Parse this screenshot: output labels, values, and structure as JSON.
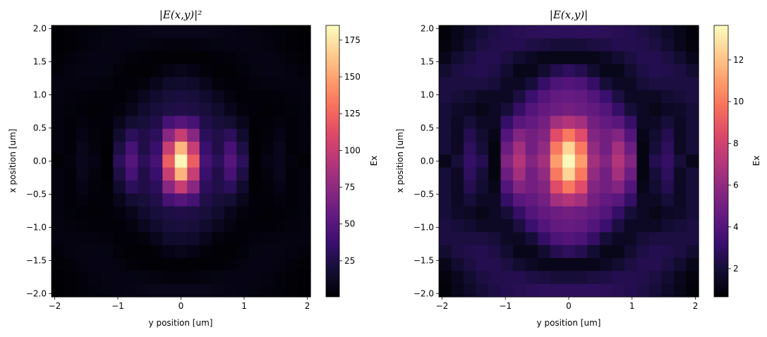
{
  "colormap": "magma",
  "chart_data": [
    {
      "type": "heatmap",
      "title": "|E(x,y)|²",
      "xlabel": "y position [um]",
      "ylabel": "x position [um]",
      "colorbar_label": "Ex",
      "xlim": [
        -2.05,
        2.05
      ],
      "ylim": [
        -2.05,
        2.05
      ],
      "xticks": [
        "−2",
        "−1",
        "0",
        "1",
        "2"
      ],
      "xtick_values": [
        -2,
        -1,
        0,
        1,
        2
      ],
      "yticks": [
        "−2.0",
        "−1.5",
        "−1.0",
        "−0.5",
        "0.0",
        "0.5",
        "1.0",
        "1.5",
        "2.0"
      ],
      "ytick_values": [
        -2,
        -1.5,
        -1,
        -0.5,
        0,
        0.5,
        1,
        1.5,
        2
      ],
      "colorbar_range": [
        0.5,
        185
      ],
      "colorbar_ticks": [
        "25",
        "50",
        "75",
        "100",
        "125",
        "150",
        "175"
      ],
      "colorbar_tick_values": [
        25,
        50,
        75,
        100,
        125,
        150,
        175
      ],
      "grid": false,
      "x": [
        -2.0,
        -1.8,
        -1.6,
        -1.4,
        -1.2,
        -1.0,
        -0.8,
        -0.6,
        -0.4,
        -0.2,
        0,
        0.2,
        0.4,
        0.6,
        0.8,
        1.0,
        1.2,
        1.4,
        1.6,
        1.8,
        2.0
      ],
      "y_top_to_bottom": [
        2.0,
        1.8,
        1.6,
        1.4,
        1.2,
        1.0,
        0.8,
        0.6,
        0.4,
        0.2,
        0,
        -0.2,
        -0.4,
        -0.6,
        -0.8,
        -1.0,
        -1.2,
        -1.4,
        -1.6,
        -1.8,
        -2.0
      ],
      "z": [
        [
          0.6,
          1.4,
          2.6,
          4,
          5.3,
          6.3,
          6.8,
          7.3,
          7.8,
          7.8,
          7.8,
          7.8,
          7.8,
          7.3,
          6.8,
          6.3,
          5.3,
          4,
          2.6,
          1.4,
          0.6
        ],
        [
          0.8,
          1.7,
          3.2,
          4.8,
          5.8,
          6.3,
          6.3,
          5.3,
          4.8,
          4,
          4,
          4,
          4.8,
          5.3,
          6.3,
          6.3,
          5.8,
          4.8,
          3.2,
          1.7,
          0.8
        ],
        [
          1.4,
          3.2,
          4.8,
          6.3,
          6.3,
          4.8,
          3.2,
          2.3,
          1.4,
          1.4,
          1.4,
          1.4,
          1.4,
          2.3,
          3.2,
          4.8,
          6.3,
          6.3,
          4.8,
          3.2,
          1.4
        ],
        [
          3.2,
          4.8,
          5.8,
          6.3,
          5.3,
          3.2,
          1.4,
          1.4,
          3.2,
          6.3,
          7.8,
          6.3,
          3.2,
          1.4,
          1.4,
          3.2,
          5.3,
          6.3,
          5.8,
          4.8,
          3.2
        ],
        [
          4.8,
          4.8,
          4.8,
          4.8,
          4,
          2.3,
          2.3,
          4,
          9,
          14.4,
          16,
          14.4,
          9,
          4,
          2.3,
          2.3,
          4,
          4.8,
          4.8,
          4.8,
          4.8
        ],
        [
          4.8,
          4,
          3.2,
          2.3,
          2.3,
          2.3,
          4.8,
          10.2,
          16,
          20.3,
          21.2,
          20.3,
          16,
          10.2,
          4.8,
          2.3,
          2.3,
          2.3,
          3.2,
          4,
          4.8
        ],
        [
          4,
          2.6,
          2.3,
          1.4,
          2.3,
          4,
          9,
          16,
          20.3,
          23,
          25,
          23,
          20.3,
          16,
          9,
          4,
          2.3,
          1.4,
          2.3,
          2.6,
          4
        ],
        [
          4,
          2.3,
          4,
          2.3,
          2.3,
          9,
          17.6,
          20.3,
          25,
          42.3,
          49,
          42.3,
          25,
          20.3,
          17.6,
          9,
          2.3,
          2.3,
          4,
          2.3,
          4
        ],
        [
          4,
          2.3,
          6.3,
          3.2,
          1.4,
          16,
          30.3,
          25,
          30.3,
          72.3,
          100,
          72.3,
          30.3,
          25,
          30.3,
          16,
          1.4,
          3.2,
          6.3,
          2.3,
          4
        ],
        [
          4,
          2.3,
          7.8,
          4,
          1,
          23,
          42.3,
          25,
          36,
          100,
          156.3,
          100,
          36,
          25,
          42.3,
          23,
          1,
          4,
          7.8,
          2.3,
          4
        ],
        [
          1.4,
          4,
          9,
          6.3,
          1,
          30.3,
          49,
          30.3,
          42.3,
          121,
          182.3,
          121,
          42.3,
          30.3,
          49,
          30.3,
          1,
          6.3,
          9,
          4,
          1.4
        ],
        [
          4,
          2.3,
          7.8,
          4,
          1,
          23,
          42.3,
          25,
          36,
          100,
          156.3,
          100,
          36,
          25,
          42.3,
          23,
          1,
          4,
          7.8,
          2.3,
          4
        ],
        [
          4,
          2.3,
          6.3,
          3.2,
          1.4,
          16,
          30.3,
          25,
          30.3,
          72.3,
          100,
          72.3,
          30.3,
          25,
          30.3,
          16,
          1.4,
          3.2,
          6.3,
          2.3,
          4
        ],
        [
          4,
          2.3,
          4,
          2.3,
          2.3,
          9,
          17.6,
          20.3,
          25,
          42.3,
          49,
          42.3,
          25,
          20.3,
          17.6,
          9,
          2.3,
          2.3,
          4,
          2.3,
          4
        ],
        [
          4,
          2.6,
          2.3,
          1.4,
          2.3,
          4,
          9,
          16,
          20.3,
          23,
          25,
          23,
          20.3,
          16,
          9,
          4,
          2.3,
          1.4,
          2.3,
          2.6,
          4
        ],
        [
          4.8,
          4,
          3.2,
          2.3,
          2.3,
          2.3,
          4.8,
          10.2,
          16,
          20.3,
          21.2,
          20.3,
          16,
          10.2,
          4.8,
          2.3,
          2.3,
          2.3,
          3.2,
          4,
          4.8
        ],
        [
          4.8,
          4.8,
          4.8,
          4.8,
          4,
          2.3,
          2.3,
          4,
          9,
          14.4,
          16,
          14.4,
          9,
          4,
          2.3,
          2.3,
          4,
          4.8,
          4.8,
          4.8,
          4.8
        ],
        [
          3.2,
          4.8,
          5.8,
          6.3,
          5.3,
          3.2,
          1.4,
          1.4,
          3.2,
          6.3,
          7.8,
          6.3,
          3.2,
          1.4,
          1.4,
          3.2,
          5.3,
          6.3,
          5.8,
          4.8,
          3.2
        ],
        [
          1.4,
          3.2,
          4.8,
          6.3,
          6.3,
          4.8,
          3.2,
          2.3,
          1.4,
          1.4,
          1.4,
          1.4,
          1.4,
          2.3,
          3.2,
          4.8,
          6.3,
          6.3,
          4.8,
          3.2,
          1.4
        ],
        [
          0.8,
          1.7,
          3.2,
          4.8,
          5.8,
          6.3,
          6.3,
          5.3,
          4.8,
          4,
          4,
          4,
          4.8,
          5.3,
          6.3,
          6.3,
          5.8,
          4.8,
          3.2,
          1.7,
          0.8
        ],
        [
          0.6,
          1.4,
          2.6,
          4,
          5.3,
          6.3,
          6.8,
          7.3,
          7.8,
          7.8,
          7.8,
          7.8,
          7.8,
          7.3,
          6.8,
          6.3,
          5.3,
          4,
          2.6,
          1.4,
          0.6
        ]
      ]
    },
    {
      "type": "heatmap",
      "title": "|E(x,y)|",
      "xlabel": "y position [um]",
      "ylabel": "x position [um]",
      "colorbar_label": "Ex",
      "xlim": [
        -2.05,
        2.05
      ],
      "ylim": [
        -2.05,
        2.05
      ],
      "xticks": [
        "−2",
        "−1",
        "0",
        "1",
        "2"
      ],
      "xtick_values": [
        -2,
        -1,
        0,
        1,
        2
      ],
      "yticks": [
        "−2.0",
        "−1.5",
        "−1.0",
        "−0.5",
        "0.0",
        "0.5",
        "1.0",
        "1.5",
        "2.0"
      ],
      "ytick_values": [
        -2,
        -1.5,
        -1,
        -0.5,
        0,
        0.5,
        1,
        1.5,
        2
      ],
      "colorbar_range": [
        0.65,
        13.65
      ],
      "colorbar_ticks": [
        "2",
        "4",
        "6",
        "8",
        "10",
        "12"
      ],
      "colorbar_tick_values": [
        2,
        4,
        6,
        8,
        10,
        12
      ],
      "grid": false,
      "x": [
        -2.0,
        -1.8,
        -1.6,
        -1.4,
        -1.2,
        -1.0,
        -0.8,
        -0.6,
        -0.4,
        -0.2,
        0,
        0.2,
        0.4,
        0.6,
        0.8,
        1.0,
        1.2,
        1.4,
        1.6,
        1.8,
        2.0
      ],
      "y_top_to_bottom": [
        2.0,
        1.8,
        1.6,
        1.4,
        1.2,
        1.0,
        0.8,
        0.6,
        0.4,
        0.2,
        0,
        -0.2,
        -0.4,
        -0.6,
        -0.8,
        -1.0,
        -1.2,
        -1.4,
        -1.6,
        -1.8,
        -2.0
      ],
      "z": [
        [
          0.8,
          1.2,
          1.6,
          2,
          2.3,
          2.5,
          2.6,
          2.7,
          2.8,
          2.8,
          2.8,
          2.8,
          2.8,
          2.7,
          2.6,
          2.5,
          2.3,
          2,
          1.6,
          1.2,
          0.8
        ],
        [
          0.9,
          1.3,
          1.8,
          2.2,
          2.4,
          2.5,
          2.5,
          2.3,
          2.2,
          2,
          2,
          2,
          2.2,
          2.3,
          2.5,
          2.5,
          2.4,
          2.2,
          1.8,
          1.3,
          0.9
        ],
        [
          1.2,
          1.8,
          2.2,
          2.5,
          2.5,
          2.2,
          1.8,
          1.5,
          1.2,
          1.2,
          1.2,
          1.2,
          1.2,
          1.5,
          1.8,
          2.2,
          2.5,
          2.5,
          2.2,
          1.8,
          1.2
        ],
        [
          1.8,
          2.2,
          2.4,
          2.5,
          2.3,
          1.8,
          1.2,
          1.2,
          1.8,
          2.5,
          2.8,
          2.5,
          1.8,
          1.2,
          1.2,
          1.8,
          2.3,
          2.5,
          2.4,
          2.2,
          1.8
        ],
        [
          2.2,
          2.2,
          2.2,
          2.2,
          2,
          1.5,
          1.5,
          2,
          3,
          3.8,
          4,
          3.8,
          3,
          2,
          1.5,
          1.5,
          2,
          2.2,
          2.2,
          2.2,
          2.2
        ],
        [
          2.2,
          2,
          1.8,
          1.5,
          1.5,
          1.5,
          2.2,
          3.2,
          4,
          4.5,
          4.6,
          4.5,
          4,
          3.2,
          2.2,
          1.5,
          1.5,
          1.5,
          1.8,
          2,
          2.2
        ],
        [
          2,
          1.6,
          1.5,
          1.2,
          1.5,
          2,
          3,
          4,
          4.5,
          4.8,
          5,
          4.8,
          4.5,
          4,
          3,
          2,
          1.5,
          1.2,
          1.5,
          1.6,
          2
        ],
        [
          2,
          1.5,
          2,
          1.5,
          1.5,
          3,
          4.2,
          4.5,
          5,
          6.5,
          7,
          6.5,
          5,
          4.5,
          4.2,
          3,
          1.5,
          1.5,
          2,
          1.5,
          2
        ],
        [
          2,
          1.5,
          2.5,
          1.8,
          1.2,
          4,
          5.5,
          5,
          5.5,
          8.5,
          10,
          8.5,
          5.5,
          5,
          5.5,
          4,
          1.2,
          1.8,
          2.5,
          1.5,
          2
        ],
        [
          2,
          1.5,
          2.8,
          2,
          1,
          4.8,
          6.5,
          5,
          6,
          10,
          12.5,
          10,
          6,
          5,
          6.5,
          4.8,
          1,
          2,
          2.8,
          1.5,
          2
        ],
        [
          1.2,
          2,
          3,
          2.5,
          1,
          5.5,
          7,
          5.5,
          6.5,
          11,
          13.5,
          11,
          6.5,
          5.5,
          7,
          5.5,
          1,
          2.5,
          3,
          2,
          1.2
        ],
        [
          2,
          1.5,
          2.8,
          2,
          1,
          4.8,
          6.5,
          5,
          6,
          10,
          12.5,
          10,
          6,
          5,
          6.5,
          4.8,
          1,
          2,
          2.8,
          1.5,
          2
        ],
        [
          2,
          1.5,
          2.5,
          1.8,
          1.2,
          4,
          5.5,
          5,
          5.5,
          8.5,
          10,
          8.5,
          5.5,
          5,
          5.5,
          4,
          1.2,
          1.8,
          2.5,
          1.5,
          2
        ],
        [
          2,
          1.5,
          2,
          1.5,
          1.5,
          3,
          4.2,
          4.5,
          5,
          6.5,
          7,
          6.5,
          5,
          4.5,
          4.2,
          3,
          1.5,
          1.5,
          2,
          1.5,
          2
        ],
        [
          2,
          1.6,
          1.5,
          1.2,
          1.5,
          2,
          3,
          4,
          4.5,
          4.8,
          5,
          4.8,
          4.5,
          4,
          3,
          2,
          1.5,
          1.2,
          1.5,
          1.6,
          2
        ],
        [
          2.2,
          2,
          1.8,
          1.5,
          1.5,
          1.5,
          2.2,
          3.2,
          4,
          4.5,
          4.6,
          4.5,
          4,
          3.2,
          2.2,
          1.5,
          1.5,
          1.5,
          1.8,
          2,
          2.2
        ],
        [
          2.2,
          2.2,
          2.2,
          2.2,
          2,
          1.5,
          1.5,
          2,
          3,
          3.8,
          4,
          3.8,
          3,
          2,
          1.5,
          1.5,
          2,
          2.2,
          2.2,
          2.2,
          2.2
        ],
        [
          1.8,
          2.2,
          2.4,
          2.5,
          2.3,
          1.8,
          1.2,
          1.2,
          1.8,
          2.5,
          2.8,
          2.5,
          1.8,
          1.2,
          1.2,
          1.8,
          2.3,
          2.5,
          2.4,
          2.2,
          1.8
        ],
        [
          1.2,
          1.8,
          2.2,
          2.5,
          2.5,
          2.2,
          1.8,
          1.5,
          1.2,
          1.2,
          1.2,
          1.2,
          1.2,
          1.5,
          1.8,
          2.2,
          2.5,
          2.5,
          2.2,
          1.8,
          1.2
        ],
        [
          0.9,
          1.3,
          1.8,
          2.2,
          2.4,
          2.5,
          2.5,
          2.3,
          2.2,
          2,
          2,
          2,
          2.2,
          2.3,
          2.5,
          2.5,
          2.4,
          2.2,
          1.8,
          1.3,
          0.9
        ],
        [
          0.8,
          1.2,
          1.6,
          2,
          2.3,
          2.5,
          2.6,
          2.7,
          2.8,
          2.8,
          2.8,
          2.8,
          2.8,
          2.7,
          2.6,
          2.5,
          2.3,
          2,
          1.6,
          1.2,
          0.8
        ]
      ]
    }
  ]
}
